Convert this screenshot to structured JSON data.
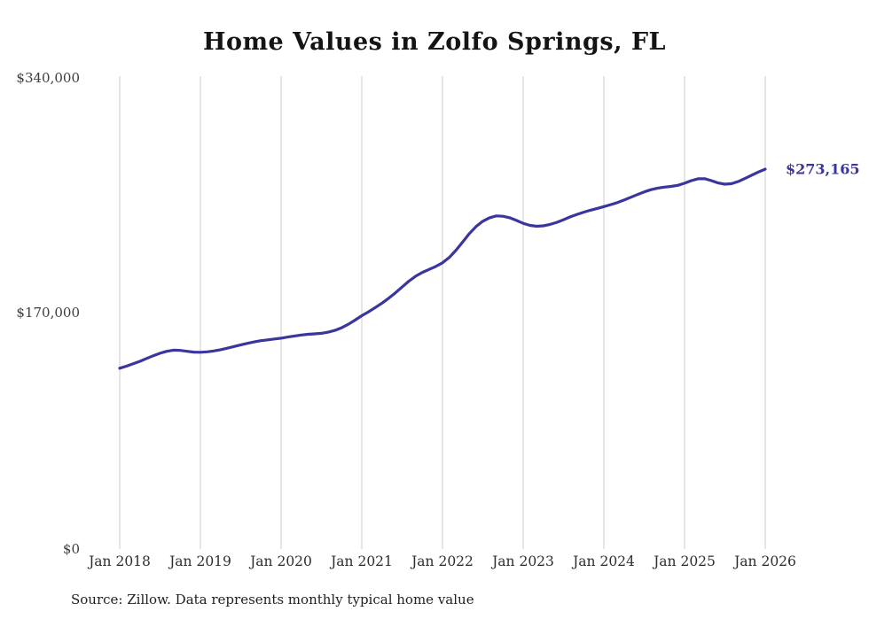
{
  "chart_data": {
    "type": "line",
    "title": "Home Values in Zolfo Springs, FL",
    "xlabel": "",
    "ylabel": "",
    "ylim": [
      0,
      340000
    ],
    "grid": "vertical-only",
    "legend": "none",
    "line_color": "#3b359e",
    "grid_color": "#cccccc",
    "x_tick_labels": [
      "Jan 2018",
      "Jan 2019",
      "Jan 2020",
      "Jan 2021",
      "Jan 2022",
      "Jan 2023",
      "Jan 2024",
      "Jan 2025",
      "Jan 2026"
    ],
    "y_tick_labels": [
      "$340,000",
      "$170,000",
      "$0"
    ],
    "y_tick_values": [
      340000,
      170000,
      0
    ],
    "end_label": "$273,165",
    "end_value": 273165,
    "series": [
      {
        "name": "Monthly typical home value",
        "x_start": "2018-01",
        "interval": "monthly",
        "values": [
          130000,
          131500,
          133200,
          135000,
          137000,
          139000,
          140800,
          142200,
          143000,
          142800,
          142200,
          141600,
          141500,
          141800,
          142400,
          143300,
          144400,
          145600,
          146800,
          147900,
          148900,
          149800,
          150400,
          151000,
          151600,
          152400,
          153200,
          153900,
          154400,
          154700,
          155100,
          155900,
          157200,
          159100,
          161600,
          164600,
          167800,
          170600,
          173600,
          176800,
          180300,
          184200,
          188400,
          192600,
          196200,
          198900,
          201000,
          203200,
          205800,
          209600,
          214800,
          220800,
          226800,
          231900,
          235700,
          238200,
          239500,
          239300,
          238200,
          236300,
          234200,
          232700,
          232100,
          232400,
          233400,
          234900,
          236800,
          238800,
          240600,
          242200,
          243600,
          244900,
          246200,
          247600,
          249100,
          250900,
          252900,
          254900,
          256800,
          258400,
          259500,
          260200,
          260700,
          261500,
          263000,
          264900,
          266200,
          266300,
          264900,
          263200,
          262300,
          262700,
          264300,
          266500,
          268800,
          271100,
          273165
        ]
      }
    ]
  },
  "source": "Source: Zillow. Data represents monthly typical home value"
}
